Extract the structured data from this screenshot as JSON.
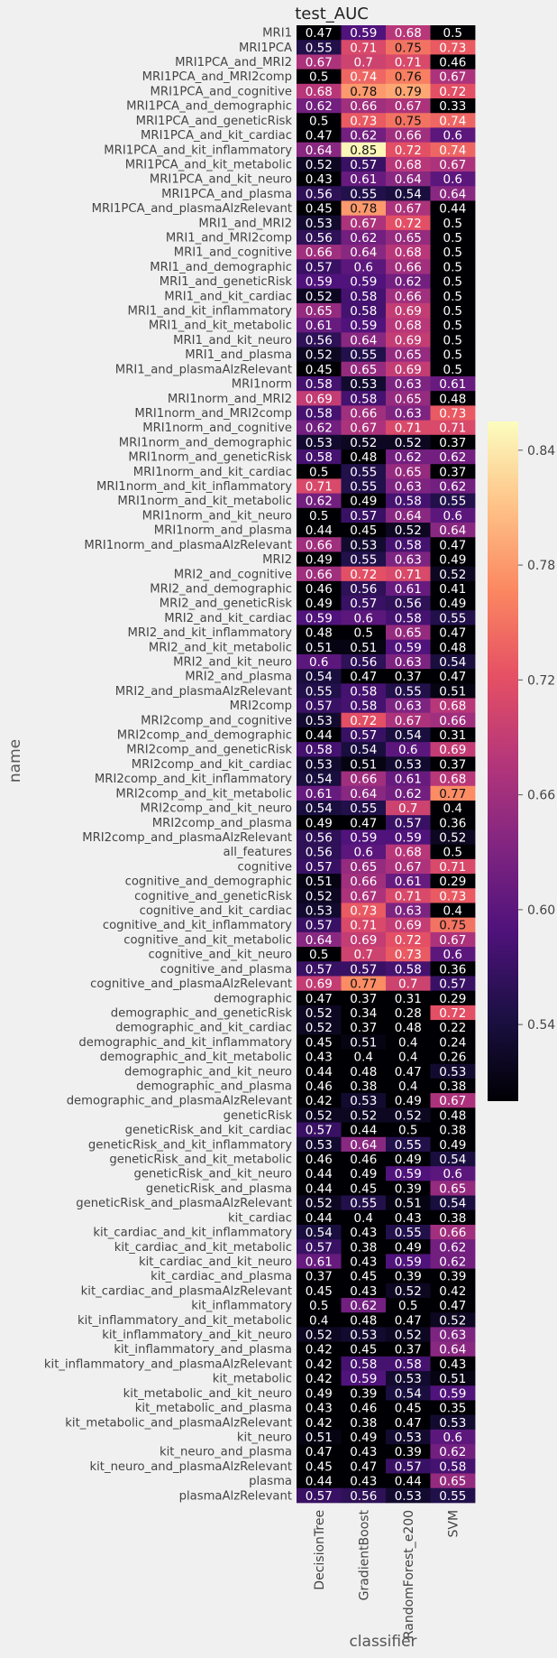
{
  "chart_data": {
    "type": "heatmap",
    "title": "test_AUC",
    "xlabel": "classifier",
    "ylabel": "name",
    "columns": [
      "DecisionTree",
      "GradientBoost",
      "RandomForest_e200",
      "SVM"
    ],
    "colorbar": {
      "vmin": 0.5,
      "vmax": 0.855,
      "ticks": [
        "0.54",
        "0.60",
        "0.66",
        "0.72",
        "0.78",
        "0.84"
      ],
      "tick_values": [
        0.54,
        0.6,
        0.66,
        0.72,
        0.78,
        0.84
      ]
    },
    "rows": [
      {
        "name": "MRI1",
        "values": [
          "0.47",
          "0.59",
          "0.68",
          "0.5"
        ]
      },
      {
        "name": "MRI1PCA",
        "values": [
          "0.55",
          "0.71",
          "0.75",
          "0.73"
        ]
      },
      {
        "name": "MRI1PCA_and_MRI2",
        "values": [
          "0.67",
          "0.7",
          "0.71",
          "0.46"
        ]
      },
      {
        "name": "MRI1PCA_and_MRI2comp",
        "values": [
          "0.5",
          "0.74",
          "0.76",
          "0.67"
        ]
      },
      {
        "name": "MRI1PCA_and_cognitive",
        "values": [
          "0.68",
          "0.78",
          "0.79",
          "0.72"
        ]
      },
      {
        "name": "MRI1PCA_and_demographic",
        "values": [
          "0.62",
          "0.66",
          "0.67",
          "0.33"
        ]
      },
      {
        "name": "MRI1PCA_and_geneticRisk",
        "values": [
          "0.5",
          "0.73",
          "0.75",
          "0.74"
        ]
      },
      {
        "name": "MRI1PCA_and_kit_cardiac",
        "values": [
          "0.47",
          "0.62",
          "0.66",
          "0.6"
        ]
      },
      {
        "name": "MRI1PCA_and_kit_inflammatory",
        "values": [
          "0.64",
          "0.85",
          "0.72",
          "0.74"
        ]
      },
      {
        "name": "MRI1PCA_and_kit_metabolic",
        "values": [
          "0.52",
          "0.57",
          "0.68",
          "0.67"
        ]
      },
      {
        "name": "MRI1PCA_and_kit_neuro",
        "values": [
          "0.43",
          "0.61",
          "0.64",
          "0.6"
        ]
      },
      {
        "name": "MRI1PCA_and_plasma",
        "values": [
          "0.56",
          "0.55",
          "0.54",
          "0.64"
        ]
      },
      {
        "name": "MRI1PCA_and_plasmaAlzRelevant",
        "values": [
          "0.45",
          "0.78",
          "0.67",
          "0.44"
        ]
      },
      {
        "name": "MRI1_and_MRI2",
        "values": [
          "0.53",
          "0.67",
          "0.72",
          "0.5"
        ]
      },
      {
        "name": "MRI1_and_MRI2comp",
        "values": [
          "0.56",
          "0.62",
          "0.65",
          "0.5"
        ]
      },
      {
        "name": "MRI1_and_cognitive",
        "values": [
          "0.66",
          "0.64",
          "0.68",
          "0.5"
        ]
      },
      {
        "name": "MRI1_and_demographic",
        "values": [
          "0.57",
          "0.6",
          "0.66",
          "0.5"
        ]
      },
      {
        "name": "MRI1_and_geneticRisk",
        "values": [
          "0.59",
          "0.59",
          "0.62",
          "0.5"
        ]
      },
      {
        "name": "MRI1_and_kit_cardiac",
        "values": [
          "0.52",
          "0.58",
          "0.66",
          "0.5"
        ]
      },
      {
        "name": "MRI1_and_kit_inflammatory",
        "values": [
          "0.65",
          "0.58",
          "0.69",
          "0.5"
        ]
      },
      {
        "name": "MRI1_and_kit_metabolic",
        "values": [
          "0.61",
          "0.59",
          "0.68",
          "0.5"
        ]
      },
      {
        "name": "MRI1_and_kit_neuro",
        "values": [
          "0.56",
          "0.64",
          "0.69",
          "0.5"
        ]
      },
      {
        "name": "MRI1_and_plasma",
        "values": [
          "0.52",
          "0.55",
          "0.65",
          "0.5"
        ]
      },
      {
        "name": "MRI1_and_plasmaAlzRelevant",
        "values": [
          "0.45",
          "0.65",
          "0.69",
          "0.5"
        ]
      },
      {
        "name": "MRI1norm",
        "values": [
          "0.58",
          "0.53",
          "0.63",
          "0.61"
        ]
      },
      {
        "name": "MRI1norm_and_MRI2",
        "values": [
          "0.69",
          "0.58",
          "0.65",
          "0.48"
        ]
      },
      {
        "name": "MRI1norm_and_MRI2comp",
        "values": [
          "0.58",
          "0.66",
          "0.63",
          "0.73"
        ]
      },
      {
        "name": "MRI1norm_and_cognitive",
        "values": [
          "0.62",
          "0.67",
          "0.71",
          "0.71"
        ]
      },
      {
        "name": "MRI1norm_and_demographic",
        "values": [
          "0.53",
          "0.52",
          "0.52",
          "0.37"
        ]
      },
      {
        "name": "MRI1norm_and_geneticRisk",
        "values": [
          "0.58",
          "0.48",
          "0.62",
          "0.62"
        ]
      },
      {
        "name": "MRI1norm_and_kit_cardiac",
        "values": [
          "0.5",
          "0.55",
          "0.65",
          "0.37"
        ]
      },
      {
        "name": "MRI1norm_and_kit_inflammatory",
        "values": [
          "0.71",
          "0.55",
          "0.63",
          "0.62"
        ]
      },
      {
        "name": "MRI1norm_and_kit_metabolic",
        "values": [
          "0.62",
          "0.49",
          "0.58",
          "0.55"
        ]
      },
      {
        "name": "MRI1norm_and_kit_neuro",
        "values": [
          "0.5",
          "0.57",
          "0.64",
          "0.6"
        ]
      },
      {
        "name": "MRI1norm_and_plasma",
        "values": [
          "0.44",
          "0.45",
          "0.52",
          "0.64"
        ]
      },
      {
        "name": "MRI1norm_and_plasmaAlzRelevant",
        "values": [
          "0.66",
          "0.53",
          "0.58",
          "0.47"
        ]
      },
      {
        "name": "MRI2",
        "values": [
          "0.49",
          "0.55",
          "0.63",
          "0.49"
        ]
      },
      {
        "name": "MRI2_and_cognitive",
        "values": [
          "0.66",
          "0.72",
          "0.71",
          "0.52"
        ]
      },
      {
        "name": "MRI2_and_demographic",
        "values": [
          "0.46",
          "0.56",
          "0.61",
          "0.41"
        ]
      },
      {
        "name": "MRI2_and_geneticRisk",
        "values": [
          "0.49",
          "0.57",
          "0.56",
          "0.49"
        ]
      },
      {
        "name": "MRI2_and_kit_cardiac",
        "values": [
          "0.59",
          "0.6",
          "0.58",
          "0.55"
        ]
      },
      {
        "name": "MRI2_and_kit_inflammatory",
        "values": [
          "0.48",
          "0.5",
          "0.65",
          "0.47"
        ]
      },
      {
        "name": "MRI2_and_kit_metabolic",
        "values": [
          "0.51",
          "0.51",
          "0.59",
          "0.48"
        ]
      },
      {
        "name": "MRI2_and_kit_neuro",
        "values": [
          "0.6",
          "0.56",
          "0.63",
          "0.54"
        ]
      },
      {
        "name": "MRI2_and_plasma",
        "values": [
          "0.54",
          "0.47",
          "0.37",
          "0.47"
        ]
      },
      {
        "name": "MRI2_and_plasmaAlzRelevant",
        "values": [
          "0.55",
          "0.58",
          "0.55",
          "0.51"
        ]
      },
      {
        "name": "MRI2comp",
        "values": [
          "0.57",
          "0.58",
          "0.63",
          "0.68"
        ]
      },
      {
        "name": "MRI2comp_and_cognitive",
        "values": [
          "0.53",
          "0.72",
          "0.67",
          "0.66"
        ]
      },
      {
        "name": "MRI2comp_and_demographic",
        "values": [
          "0.44",
          "0.57",
          "0.54",
          "0.31"
        ]
      },
      {
        "name": "MRI2comp_and_geneticRisk",
        "values": [
          "0.58",
          "0.54",
          "0.6",
          "0.69"
        ]
      },
      {
        "name": "MRI2comp_and_kit_cardiac",
        "values": [
          "0.53",
          "0.51",
          "0.53",
          "0.37"
        ]
      },
      {
        "name": "MRI2comp_and_kit_inflammatory",
        "values": [
          "0.54",
          "0.66",
          "0.61",
          "0.68"
        ]
      },
      {
        "name": "MRI2comp_and_kit_metabolic",
        "values": [
          "0.61",
          "0.64",
          "0.62",
          "0.77"
        ]
      },
      {
        "name": "MRI2comp_and_kit_neuro",
        "values": [
          "0.54",
          "0.55",
          "0.7",
          "0.4"
        ]
      },
      {
        "name": "MRI2comp_and_plasma",
        "values": [
          "0.49",
          "0.47",
          "0.57",
          "0.36"
        ]
      },
      {
        "name": "MRI2comp_and_plasmaAlzRelevant",
        "values": [
          "0.56",
          "0.59",
          "0.59",
          "0.52"
        ]
      },
      {
        "name": "all_features",
        "values": [
          "0.56",
          "0.6",
          "0.68",
          "0.5"
        ]
      },
      {
        "name": "cognitive",
        "values": [
          "0.57",
          "0.65",
          "0.67",
          "0.71"
        ]
      },
      {
        "name": "cognitive_and_demographic",
        "values": [
          "0.51",
          "0.66",
          "0.61",
          "0.29"
        ]
      },
      {
        "name": "cognitive_and_geneticRisk",
        "values": [
          "0.52",
          "0.67",
          "0.71",
          "0.73"
        ]
      },
      {
        "name": "cognitive_and_kit_cardiac",
        "values": [
          "0.53",
          "0.73",
          "0.63",
          "0.4"
        ]
      },
      {
        "name": "cognitive_and_kit_inflammatory",
        "values": [
          "0.57",
          "0.71",
          "0.69",
          "0.75"
        ]
      },
      {
        "name": "cognitive_and_kit_metabolic",
        "values": [
          "0.64",
          "0.69",
          "0.72",
          "0.67"
        ]
      },
      {
        "name": "cognitive_and_kit_neuro",
        "values": [
          "0.5",
          "0.7",
          "0.73",
          "0.6"
        ]
      },
      {
        "name": "cognitive_and_plasma",
        "values": [
          "0.57",
          "0.57",
          "0.58",
          "0.36"
        ]
      },
      {
        "name": "cognitive_and_plasmaAlzRelevant",
        "values": [
          "0.69",
          "0.77",
          "0.7",
          "0.57"
        ]
      },
      {
        "name": "demographic",
        "values": [
          "0.47",
          "0.37",
          "0.31",
          "0.29"
        ]
      },
      {
        "name": "demographic_and_geneticRisk",
        "values": [
          "0.52",
          "0.34",
          "0.28",
          "0.72"
        ]
      },
      {
        "name": "demographic_and_kit_cardiac",
        "values": [
          "0.52",
          "0.37",
          "0.48",
          "0.22"
        ]
      },
      {
        "name": "demographic_and_kit_inflammatory",
        "values": [
          "0.45",
          "0.51",
          "0.4",
          "0.24"
        ]
      },
      {
        "name": "demographic_and_kit_metabolic",
        "values": [
          "0.43",
          "0.4",
          "0.4",
          "0.26"
        ]
      },
      {
        "name": "demographic_and_kit_neuro",
        "values": [
          "0.44",
          "0.48",
          "0.47",
          "0.53"
        ]
      },
      {
        "name": "demographic_and_plasma",
        "values": [
          "0.46",
          "0.38",
          "0.4",
          "0.38"
        ]
      },
      {
        "name": "demographic_and_plasmaAlzRelevant",
        "values": [
          "0.42",
          "0.53",
          "0.49",
          "0.67"
        ]
      },
      {
        "name": "geneticRisk",
        "values": [
          "0.52",
          "0.52",
          "0.52",
          "0.48"
        ]
      },
      {
        "name": "geneticRisk_and_kit_cardiac",
        "values": [
          "0.57",
          "0.44",
          "0.5",
          "0.38"
        ]
      },
      {
        "name": "geneticRisk_and_kit_inflammatory",
        "values": [
          "0.53",
          "0.64",
          "0.55",
          "0.49"
        ]
      },
      {
        "name": "geneticRisk_and_kit_metabolic",
        "values": [
          "0.46",
          "0.46",
          "0.49",
          "0.54"
        ]
      },
      {
        "name": "geneticRisk_and_kit_neuro",
        "values": [
          "0.44",
          "0.49",
          "0.59",
          "0.6"
        ]
      },
      {
        "name": "geneticRisk_and_plasma",
        "values": [
          "0.44",
          "0.45",
          "0.39",
          "0.65"
        ]
      },
      {
        "name": "geneticRisk_and_plasmaAlzRelevant",
        "values": [
          "0.52",
          "0.55",
          "0.51",
          "0.54"
        ]
      },
      {
        "name": "kit_cardiac",
        "values": [
          "0.44",
          "0.4",
          "0.43",
          "0.38"
        ]
      },
      {
        "name": "kit_cardiac_and_kit_inflammatory",
        "values": [
          "0.54",
          "0.43",
          "0.55",
          "0.66"
        ]
      },
      {
        "name": "kit_cardiac_and_kit_metabolic",
        "values": [
          "0.57",
          "0.38",
          "0.49",
          "0.62"
        ]
      },
      {
        "name": "kit_cardiac_and_kit_neuro",
        "values": [
          "0.61",
          "0.43",
          "0.59",
          "0.62"
        ]
      },
      {
        "name": "kit_cardiac_and_plasma",
        "values": [
          "0.37",
          "0.45",
          "0.39",
          "0.39"
        ]
      },
      {
        "name": "kit_cardiac_and_plasmaAlzRelevant",
        "values": [
          "0.45",
          "0.43",
          "0.52",
          "0.42"
        ]
      },
      {
        "name": "kit_inflammatory",
        "values": [
          "0.5",
          "0.62",
          "0.5",
          "0.47"
        ]
      },
      {
        "name": "kit_inflammatory_and_kit_metabolic",
        "values": [
          "0.4",
          "0.48",
          "0.47",
          "0.52"
        ]
      },
      {
        "name": "kit_inflammatory_and_kit_neuro",
        "values": [
          "0.52",
          "0.53",
          "0.52",
          "0.63"
        ]
      },
      {
        "name": "kit_inflammatory_and_plasma",
        "values": [
          "0.42",
          "0.45",
          "0.37",
          "0.64"
        ]
      },
      {
        "name": "kit_inflammatory_and_plasmaAlzRelevant",
        "values": [
          "0.42",
          "0.58",
          "0.58",
          "0.43"
        ]
      },
      {
        "name": "kit_metabolic",
        "values": [
          "0.42",
          "0.59",
          "0.53",
          "0.51"
        ]
      },
      {
        "name": "kit_metabolic_and_kit_neuro",
        "values": [
          "0.49",
          "0.39",
          "0.54",
          "0.59"
        ]
      },
      {
        "name": "kit_metabolic_and_plasma",
        "values": [
          "0.43",
          "0.46",
          "0.45",
          "0.35"
        ]
      },
      {
        "name": "kit_metabolic_and_plasmaAlzRelevant",
        "values": [
          "0.42",
          "0.38",
          "0.47",
          "0.53"
        ]
      },
      {
        "name": "kit_neuro",
        "values": [
          "0.51",
          "0.49",
          "0.53",
          "0.6"
        ]
      },
      {
        "name": "kit_neuro_and_plasma",
        "values": [
          "0.47",
          "0.43",
          "0.39",
          "0.62"
        ]
      },
      {
        "name": "kit_neuro_and_plasmaAlzRelevant",
        "values": [
          "0.45",
          "0.47",
          "0.57",
          "0.58"
        ]
      },
      {
        "name": "plasma",
        "values": [
          "0.44",
          "0.43",
          "0.44",
          "0.65"
        ]
      },
      {
        "name": "plasmaAlzRelevant",
        "values": [
          "0.57",
          "0.56",
          "0.53",
          "0.55"
        ]
      }
    ]
  }
}
